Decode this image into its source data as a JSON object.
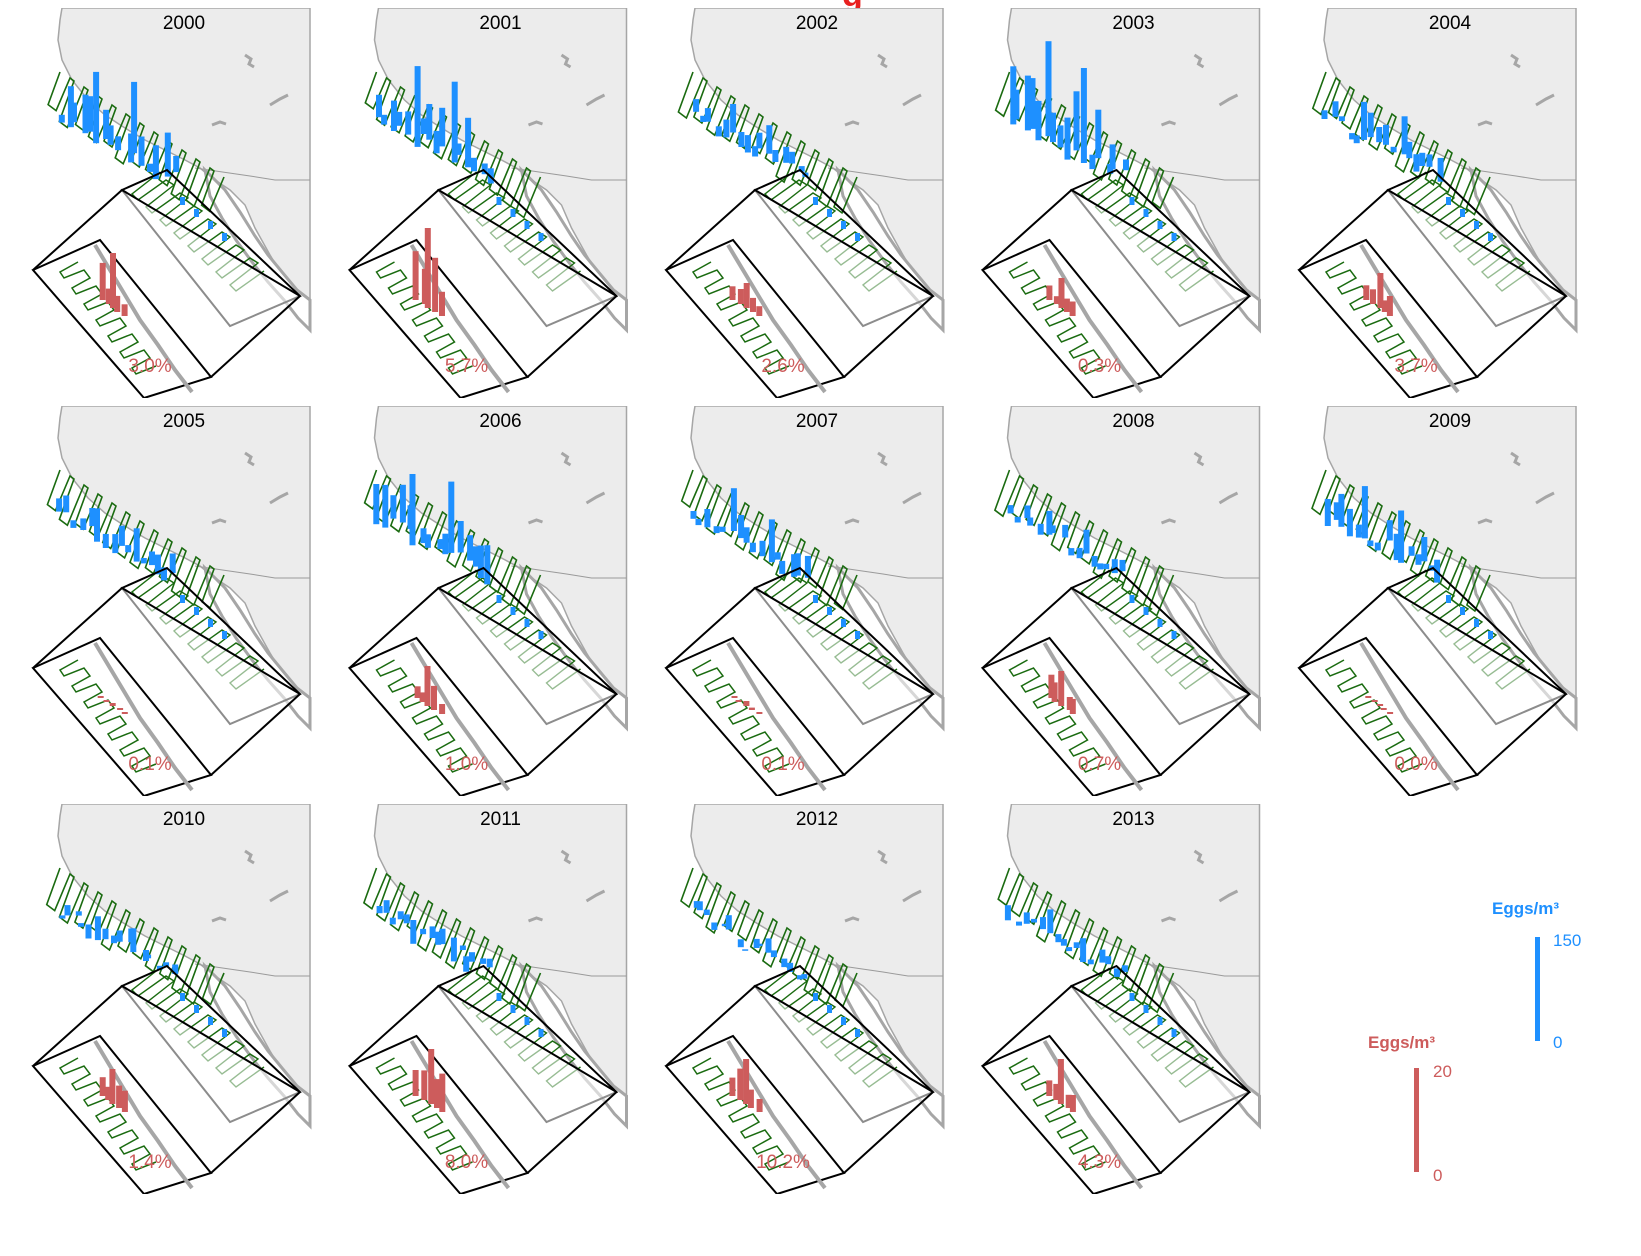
{
  "chart_data": {
    "type": "small-multiples-3d-bar-map",
    "panels": [
      {
        "year": "2000",
        "pct_label": "3.0%",
        "pct": 3.0,
        "blue_peak": 0.75,
        "red_peak": 0.55
      },
      {
        "year": "2001",
        "pct_label": "5.7%",
        "pct": 5.7,
        "blue_peak": 0.85,
        "red_peak": 0.8
      },
      {
        "year": "2002",
        "pct_label": "2.6%",
        "pct": 2.6,
        "blue_peak": 0.3,
        "red_peak": 0.25
      },
      {
        "year": "2003",
        "pct_label": "0.3%",
        "pct": 0.3,
        "blue_peak": 1.0,
        "red_peak": 0.3
      },
      {
        "year": "2004",
        "pct_label": "3.7%",
        "pct": 3.7,
        "blue_peak": 0.4,
        "red_peak": 0.35
      },
      {
        "year": "2005",
        "pct_label": "0.1%",
        "pct": 0.1,
        "blue_peak": 0.35,
        "red_peak": 0.03
      },
      {
        "year": "2006",
        "pct_label": "1.0%",
        "pct": 1.0,
        "blue_peak": 0.75,
        "red_peak": 0.4
      },
      {
        "year": "2007",
        "pct_label": "0.1%",
        "pct": 0.1,
        "blue_peak": 0.45,
        "red_peak": 0.05
      },
      {
        "year": "2008",
        "pct_label": "0.7%",
        "pct": 0.7,
        "blue_peak": 0.25,
        "red_peak": 0.35
      },
      {
        "year": "2009",
        "pct_label": "0.0%",
        "pct": 0.0,
        "blue_peak": 0.55,
        "red_peak": 0.02
      },
      {
        "year": "2010",
        "pct_label": "1.4%",
        "pct": 1.4,
        "blue_peak": 0.25,
        "red_peak": 0.35
      },
      {
        "year": "2011",
        "pct_label": "8.0%",
        "pct": 8.0,
        "blue_peak": 0.25,
        "red_peak": 0.55
      },
      {
        "year": "2012",
        "pct_label": "10.2%",
        "pct": 10.2,
        "blue_peak": 0.15,
        "red_peak": 0.45
      },
      {
        "year": "2013",
        "pct_label": "4.3%",
        "pct": 4.3,
        "blue_peak": 0.25,
        "red_peak": 0.45
      }
    ],
    "legend": {
      "blue": {
        "title": "Eggs/m³",
        "max_label": "150",
        "min_label": "0",
        "max": 150,
        "min": 0
      },
      "red": {
        "title": "Eggs/m³",
        "max_label": "20",
        "min_label": "0",
        "max": 20,
        "min": 0
      }
    },
    "colors": {
      "blue_bars": "#1e90ff",
      "red_bars": "#cd5c5c",
      "track": "#1a6b10",
      "land": "#ececec",
      "coast": "#a6a6a6",
      "percent_text": "#cd5c5c",
      "inset_box": "#000000"
    }
  }
}
